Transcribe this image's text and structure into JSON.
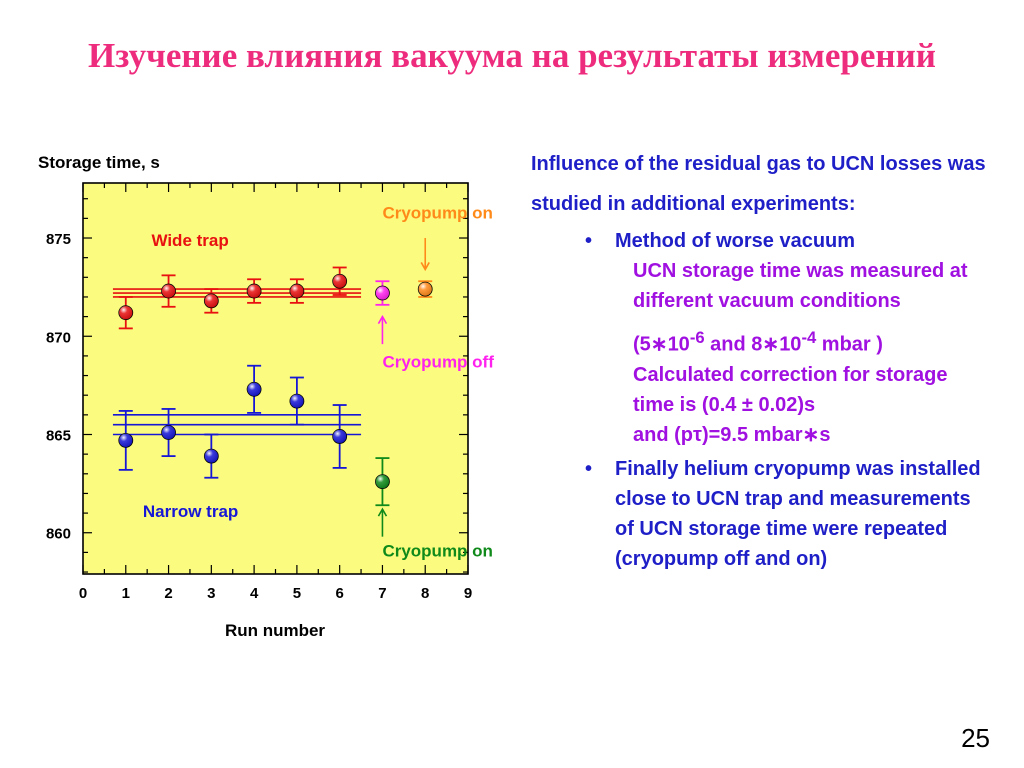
{
  "slide": {
    "title": "Изучение влияния вакуума на результаты измерений",
    "title_color": "#ee2c7e",
    "page_number": "25"
  },
  "text_panel": {
    "text_color": "#1f1fc8",
    "sub_text_color": "#a010e0",
    "intro": "Influence of the residual gas to UCN losses was studied in additional experiments:",
    "bullets": [
      {
        "label": "Method of worse vacuum",
        "details": {
          "line1": "UCN storage time was measured at different vacuum conditions",
          "line2_a": "(5",
          "line2_b": "10",
          "line2_sup1": "-6",
          "line2_c": " and 8",
          "line2_d": "10",
          "line2_sup2": "-4",
          "line2_e": " mbar )",
          "line3": "Calculated correction for storage time is (0.4 ± 0.02)s",
          "line4_a": "and (p",
          "line4_tau": "τ",
          "line4_b": ")=9.5 mbar",
          "line4_c": "s",
          "times_symbol": "∗"
        }
      },
      {
        "label": "Finally helium cryopump was installed close to UCN trap and measurements of UCN storage time were repeated (cryopump off and on)"
      }
    ]
  },
  "chart_data": {
    "type": "scatter",
    "title": "",
    "ylabel": "Storage time, s",
    "xlabel": "Run number",
    "xlim": [
      0,
      9
    ],
    "ylim": [
      857.9,
      877.8
    ],
    "x_ticks": [
      "0",
      "1",
      "2",
      "3",
      "4",
      "5",
      "6",
      "7",
      "8",
      "9"
    ],
    "y_ticks": [
      {
        "value": 860,
        "label": "860"
      },
      {
        "value": 865,
        "label": "865"
      },
      {
        "value": 870,
        "label": "870"
      },
      {
        "value": 875,
        "label": "875"
      }
    ],
    "plot_background": "#fbfb7f",
    "series": [
      {
        "name": "Wide trap",
        "color": "#e81010",
        "points": [
          {
            "x": 1,
            "y": 871.2,
            "err": 0.8
          },
          {
            "x": 2,
            "y": 872.3,
            "err": 0.8
          },
          {
            "x": 3,
            "y": 871.8,
            "err": 0.6
          },
          {
            "x": 4,
            "y": 872.3,
            "err": 0.6
          },
          {
            "x": 5,
            "y": 872.3,
            "err": 0.6
          },
          {
            "x": 6,
            "y": 872.8,
            "err": 0.7
          }
        ],
        "fit_band": {
          "x_start": 0.7,
          "x_end": 6.5,
          "lines": [
            872.4,
            872.2,
            872.0
          ]
        }
      },
      {
        "name": "Narrow trap",
        "color": "#1616d6",
        "points": [
          {
            "x": 1,
            "y": 864.7,
            "err": 1.5
          },
          {
            "x": 2,
            "y": 865.1,
            "err": 1.2
          },
          {
            "x": 3,
            "y": 863.9,
            "err": 1.1
          },
          {
            "x": 4,
            "y": 867.3,
            "err": 1.2
          },
          {
            "x": 5,
            "y": 866.7,
            "err": 1.2
          },
          {
            "x": 6,
            "y": 864.9,
            "err": 1.6
          }
        ],
        "fit_band": {
          "x_start": 0.7,
          "x_end": 6.5,
          "lines": [
            866.0,
            865.5,
            865.0
          ]
        }
      },
      {
        "name": "Cryopump off",
        "color": "#ff22ee",
        "points": [
          {
            "x": 7,
            "y": 872.2,
            "err": 0.6
          }
        ]
      },
      {
        "name": "Cryopump on",
        "color": "#ff8a1a",
        "points": [
          {
            "x": 8,
            "y": 872.4,
            "err": 0.4
          }
        ]
      },
      {
        "name": "Cryopump on",
        "color": "#0f8a1a",
        "points": [
          {
            "x": 7,
            "y": 862.6,
            "err": 1.2
          }
        ]
      }
    ],
    "annotations": [
      {
        "text": "Wide trap",
        "color": "#e81010",
        "anchor_x": 1.6,
        "anchor_y": 874.6
      },
      {
        "text": "Narrow trap",
        "color": "#1616d6",
        "anchor_x": 1.4,
        "anchor_y": 860.8
      },
      {
        "text": "Cryopump on",
        "color": "#ff8a1a",
        "anchor_x": 7.0,
        "anchor_y": 876.0,
        "arrow_to": {
          "x": 8,
          "y": 873.4
        },
        "arrow_from_y": 875.0
      },
      {
        "text": "Cryopump off",
        "color": "#ff22ee",
        "anchor_x": 7.0,
        "anchor_y": 868.4,
        "arrow_to": {
          "x": 7,
          "y": 871.0
        },
        "arrow_from_y": 869.6
      },
      {
        "text": "Cryopump on",
        "color": "#0f8a1a",
        "anchor_x": 7.0,
        "anchor_y": 858.8,
        "arrow_to": {
          "x": 7,
          "y": 861.2
        },
        "arrow_from_y": 859.8
      }
    ]
  }
}
